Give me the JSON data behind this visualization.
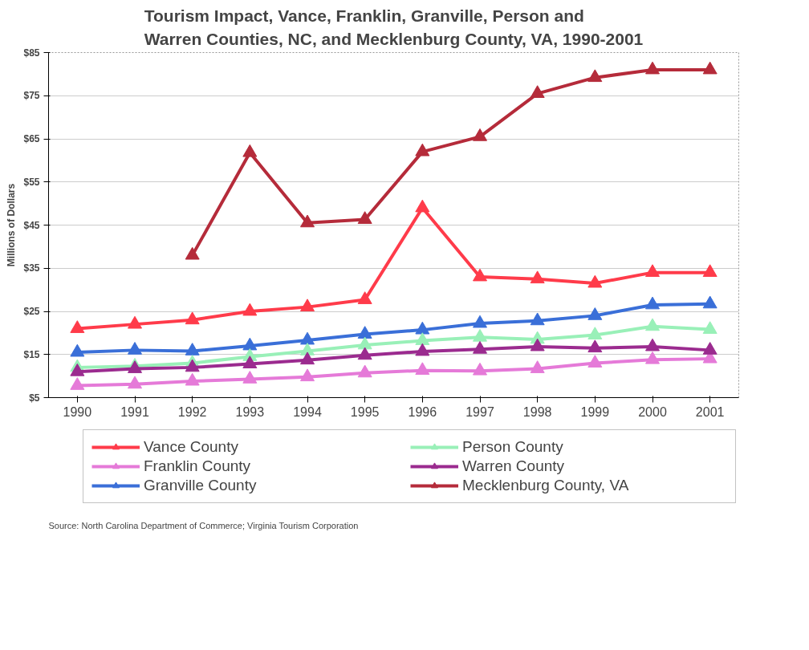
{
  "chart_data": {
    "type": "line",
    "title": "Tourism Impact, Vance, Franklin, Granville, Person and\nWarren Counties, NC, and Mecklenburg County, VA, 1990-2001",
    "ylabel": "Millions of Dollars",
    "categories": [
      "1990",
      "1991",
      "1992",
      "1993",
      "1994",
      "1995",
      "1996",
      "1997",
      "1998",
      "1999",
      "2000",
      "2001"
    ],
    "ylim": [
      5,
      85
    ],
    "yticks": [
      {
        "value": 5,
        "label": "$5"
      },
      {
        "value": 15,
        "label": "$15"
      },
      {
        "value": 25,
        "label": "$25"
      },
      {
        "value": 35,
        "label": "$35"
      },
      {
        "value": 45,
        "label": "$45"
      },
      {
        "value": 55,
        "label": "$55"
      },
      {
        "value": 65,
        "label": "$65"
      },
      {
        "value": 75,
        "label": "$75"
      },
      {
        "value": 85,
        "label": "$85"
      }
    ],
    "grid": "y",
    "legend": "bottom",
    "marker": "triangle",
    "line_style": "solid",
    "series": [
      {
        "name": "Vance County",
        "color": "#ff3b4a",
        "values": [
          21,
          22,
          23,
          25,
          26,
          27.7,
          49,
          33,
          32.5,
          31.5,
          34,
          34
        ]
      },
      {
        "name": "Franklin County",
        "color": "#e57ad8",
        "values": [
          7.8,
          8.1,
          8.8,
          9.3,
          9.8,
          10.7,
          11.3,
          11.2,
          11.7,
          13,
          13.8,
          14
        ]
      },
      {
        "name": "Granville County",
        "color": "#3a6fd8",
        "values": [
          15.5,
          16,
          15.8,
          17,
          18.3,
          19.7,
          20.7,
          22.2,
          22.8,
          24,
          26.5,
          26.7
        ]
      },
      {
        "name": "Person County",
        "color": "#99f0b8",
        "values": [
          12,
          12.3,
          13,
          14.5,
          15.8,
          17.2,
          18.2,
          19,
          18.5,
          19.5,
          21.5,
          20.8
        ]
      },
      {
        "name": "Warren County",
        "color": "#9b2b8f",
        "values": [
          11,
          11.7,
          12,
          12.8,
          13.7,
          14.8,
          15.7,
          16.2,
          16.8,
          16.5,
          16.8,
          16
        ]
      },
      {
        "name": "Mecklenburg County, VA",
        "color": "#b52b3a",
        "values": [
          null,
          null,
          38,
          61.8,
          45.5,
          46.3,
          62,
          65.5,
          75.5,
          79.2,
          81,
          81
        ]
      }
    ],
    "annotations": [
      "Source: North Carolina Department of Commerce; Virginia Tourism Corporation"
    ]
  }
}
